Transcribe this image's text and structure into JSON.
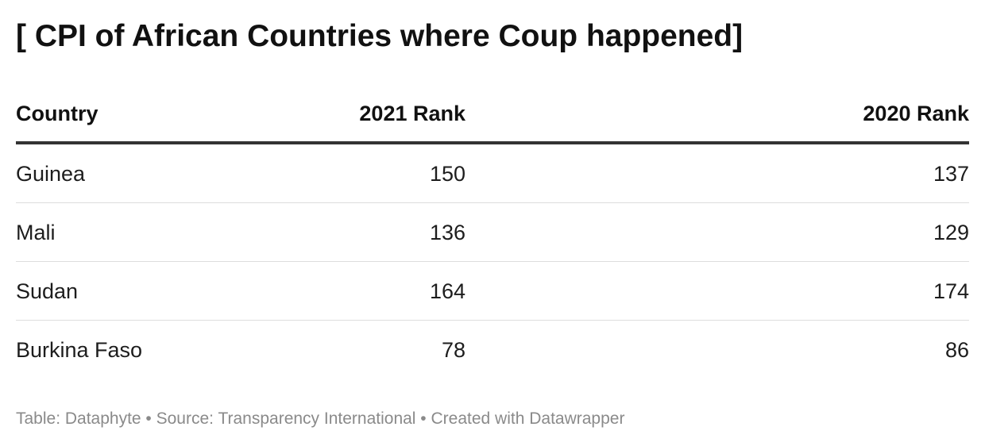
{
  "title": "[ CPI of African Countries where Coup happened]",
  "chart_data": {
    "type": "table",
    "title": "[ CPI of African Countries where Coup happened]",
    "columns": [
      "Country",
      "2021 Rank",
      "2020 Rank"
    ],
    "rows": [
      {
        "country": "Guinea",
        "rank_2021": "150",
        "rank_2020": "137"
      },
      {
        "country": "Mali",
        "rank_2021": "136",
        "rank_2020": "129"
      },
      {
        "country": "Sudan",
        "rank_2021": "164",
        "rank_2020": "174"
      },
      {
        "country": "Burkina Faso",
        "rank_2021": "78",
        "rank_2020": "86"
      }
    ]
  },
  "footer": {
    "text": "Table: Dataphyte • Source: Transparency International • Created with Datawrapper"
  },
  "colors": {
    "text": "#1d1d1d",
    "header_rule": "#333333",
    "row_rule": "#dddddd",
    "footer": "#8a8a8a"
  }
}
